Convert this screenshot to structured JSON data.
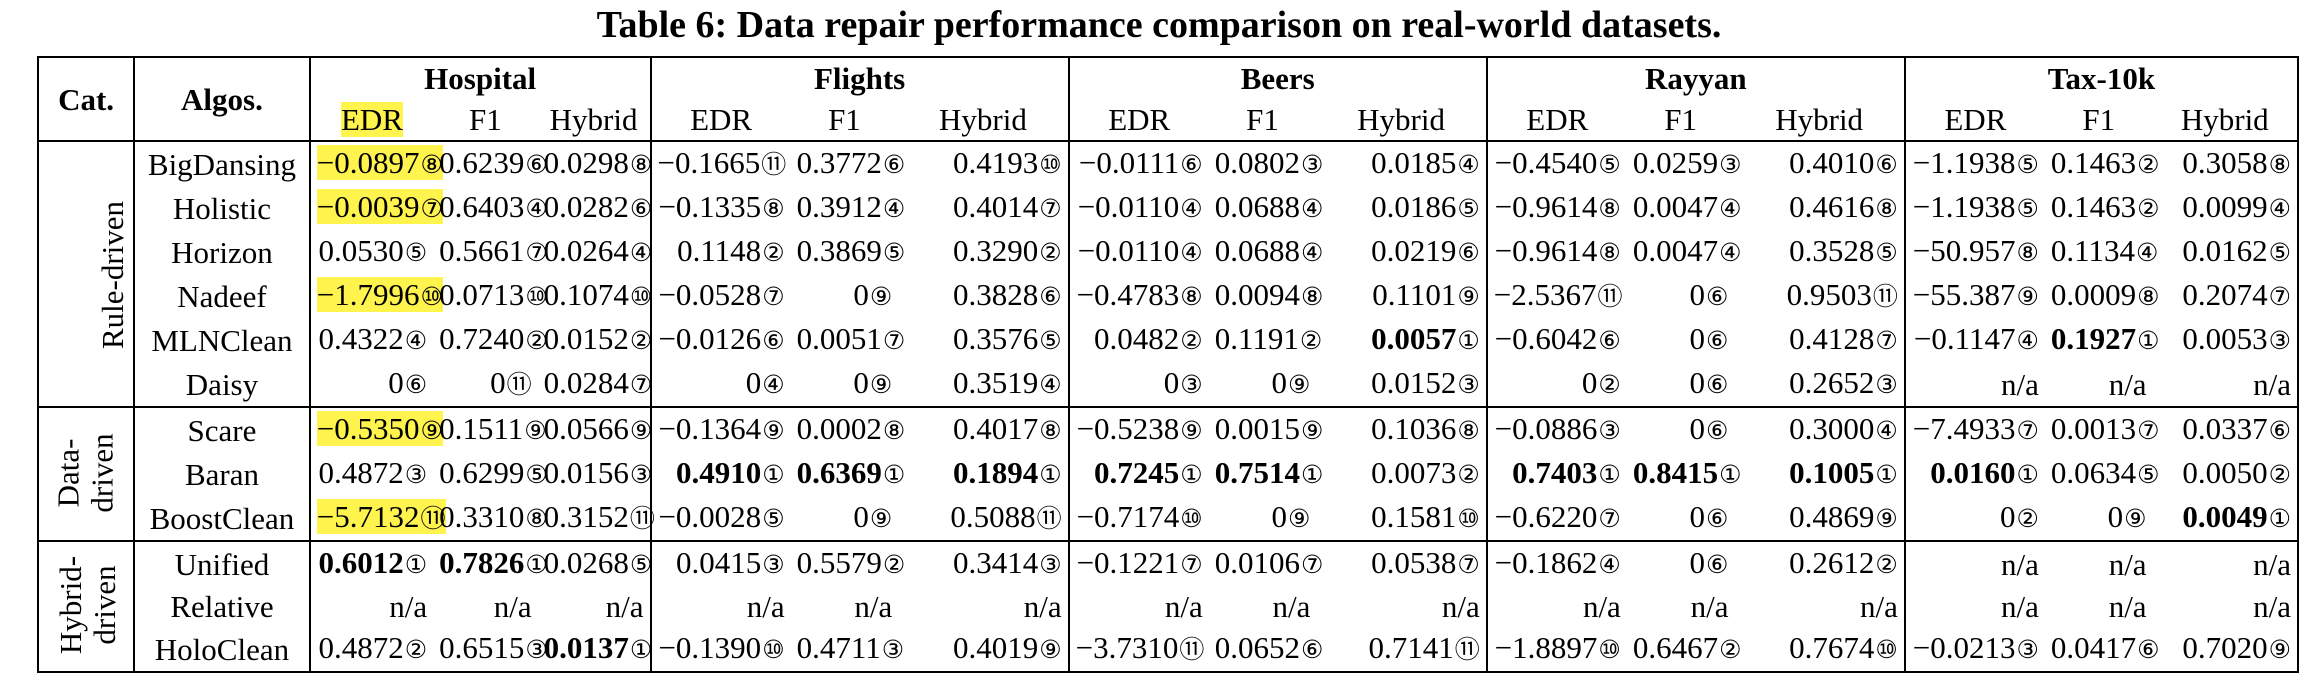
{
  "caption": "Table 6: Data repair performance comparison on real-world datasets.",
  "header": {
    "cat": "Cat.",
    "algos": "Algos.",
    "datasets": [
      "Hospital",
      "Flights",
      "Beers",
      "Rayyan",
      "Tax-10k"
    ],
    "metrics": [
      "EDR",
      "F1",
      "Hybrid"
    ]
  },
  "groups": [
    {
      "label": "Rule-driven",
      "lines": [
        "Rule-driven"
      ],
      "rows": [
        {
          "algo": "BigDansing",
          "cells": [
            {
              "v": "−0.0897",
              "r": "⑧",
              "hl": true
            },
            {
              "v": "0.6239",
              "r": "⑥"
            },
            {
              "v": "0.0298",
              "r": "⑧"
            },
            {
              "v": "−0.1665",
              "r": "⑪"
            },
            {
              "v": "0.3772",
              "r": "⑥"
            },
            {
              "v": "0.4193",
              "r": "⑩"
            },
            {
              "v": "−0.0111",
              "r": "⑥"
            },
            {
              "v": "0.0802",
              "r": "③"
            },
            {
              "v": "0.0185",
              "r": "④"
            },
            {
              "v": "−0.4540",
              "r": "⑤"
            },
            {
              "v": "0.0259",
              "r": "③"
            },
            {
              "v": "0.4010",
              "r": "⑥"
            },
            {
              "v": "−1.1938",
              "r": "⑤"
            },
            {
              "v": "0.1463",
              "r": "②"
            },
            {
              "v": "0.3058",
              "r": "⑧"
            }
          ]
        },
        {
          "algo": "Holistic",
          "cells": [
            {
              "v": "−0.0039",
              "r": "⑦",
              "hl": true
            },
            {
              "v": "0.6403",
              "r": "④"
            },
            {
              "v": "0.0282",
              "r": "⑥"
            },
            {
              "v": "−0.1335",
              "r": "⑧"
            },
            {
              "v": "0.3912",
              "r": "④"
            },
            {
              "v": "0.4014",
              "r": "⑦"
            },
            {
              "v": "−0.0110",
              "r": "④"
            },
            {
              "v": "0.0688",
              "r": "④"
            },
            {
              "v": "0.0186",
              "r": "⑤"
            },
            {
              "v": "−0.9614",
              "r": "⑧"
            },
            {
              "v": "0.0047",
              "r": "④"
            },
            {
              "v": "0.4616",
              "r": "⑧"
            },
            {
              "v": "−1.1938",
              "r": "⑤"
            },
            {
              "v": "0.1463",
              "r": "②"
            },
            {
              "v": "0.0099",
              "r": "④"
            }
          ]
        },
        {
          "algo": "Horizon",
          "cells": [
            {
              "v": "0.0530",
              "r": "⑤"
            },
            {
              "v": "0.5661",
              "r": "⑦"
            },
            {
              "v": "0.0264",
              "r": "④"
            },
            {
              "v": "0.1148",
              "r": "②"
            },
            {
              "v": "0.3869",
              "r": "⑤"
            },
            {
              "v": "0.3290",
              "r": "②"
            },
            {
              "v": "−0.0110",
              "r": "④"
            },
            {
              "v": "0.0688",
              "r": "④"
            },
            {
              "v": "0.0219",
              "r": "⑥"
            },
            {
              "v": "−0.9614",
              "r": "⑧"
            },
            {
              "v": "0.0047",
              "r": "④"
            },
            {
              "v": "0.3528",
              "r": "⑤"
            },
            {
              "v": "−50.957",
              "r": "⑧"
            },
            {
              "v": "0.1134",
              "r": "④"
            },
            {
              "v": "0.0162",
              "r": "⑤"
            }
          ]
        },
        {
          "algo": "Nadeef",
          "cells": [
            {
              "v": "−1.7996",
              "r": "⑩",
              "hl": true
            },
            {
              "v": "0.0713",
              "r": "⑩"
            },
            {
              "v": "0.1074",
              "r": "⑩"
            },
            {
              "v": "−0.0528",
              "r": "⑦"
            },
            {
              "v": "0",
              "r": "⑨"
            },
            {
              "v": "0.3828",
              "r": "⑥"
            },
            {
              "v": "−0.4783",
              "r": "⑧"
            },
            {
              "v": "0.0094",
              "r": "⑧"
            },
            {
              "v": "0.1101",
              "r": "⑨"
            },
            {
              "v": "−2.5367",
              "r": "⑪"
            },
            {
              "v": "0",
              "r": "⑥"
            },
            {
              "v": "0.9503",
              "r": "⑪"
            },
            {
              "v": "−55.387",
              "r": "⑨"
            },
            {
              "v": "0.0009",
              "r": "⑧"
            },
            {
              "v": "0.2074",
              "r": "⑦"
            }
          ]
        },
        {
          "algo": "MLNClean",
          "cells": [
            {
              "v": "0.4322",
              "r": "④"
            },
            {
              "v": "0.7240",
              "r": "②"
            },
            {
              "v": "0.0152",
              "r": "②"
            },
            {
              "v": "−0.0126",
              "r": "⑥"
            },
            {
              "v": "0.0051",
              "r": "⑦"
            },
            {
              "v": "0.3576",
              "r": "⑤"
            },
            {
              "v": "0.0482",
              "r": "②"
            },
            {
              "v": "0.1191",
              "r": "②"
            },
            {
              "v": "0.0057",
              "r": "①",
              "b": true
            },
            {
              "v": "−0.6042",
              "r": "⑥"
            },
            {
              "v": "0",
              "r": "⑥"
            },
            {
              "v": "0.4128",
              "r": "⑦"
            },
            {
              "v": "−0.1147",
              "r": "④"
            },
            {
              "v": "0.1927",
              "r": "①",
              "b": true
            },
            {
              "v": "0.0053",
              "r": "③"
            }
          ]
        },
        {
          "algo": "Daisy",
          "cells": [
            {
              "v": "0",
              "r": "⑥"
            },
            {
              "v": "0",
              "r": "⑪"
            },
            {
              "v": "0.0284",
              "r": "⑦"
            },
            {
              "v": "0",
              "r": "④"
            },
            {
              "v": "0",
              "r": "⑨"
            },
            {
              "v": "0.3519",
              "r": "④"
            },
            {
              "v": "0",
              "r": "③"
            },
            {
              "v": "0",
              "r": "⑨"
            },
            {
              "v": "0.0152",
              "r": "③"
            },
            {
              "v": "0",
              "r": "②"
            },
            {
              "v": "0",
              "r": "⑥"
            },
            {
              "v": "0.2652",
              "r": "③"
            },
            {
              "v": "n/a",
              "r": ""
            },
            {
              "v": "n/a",
              "r": ""
            },
            {
              "v": "n/a",
              "r": ""
            }
          ]
        }
      ]
    },
    {
      "label": "Data-driven",
      "lines": [
        "Data-",
        "driven"
      ],
      "rows": [
        {
          "algo": "Scare",
          "cells": [
            {
              "v": "−0.5350",
              "r": "⑨",
              "hl": true
            },
            {
              "v": "0.1511",
              "r": "⑨"
            },
            {
              "v": "0.0566",
              "r": "⑨"
            },
            {
              "v": "−0.1364",
              "r": "⑨"
            },
            {
              "v": "0.0002",
              "r": "⑧"
            },
            {
              "v": "0.4017",
              "r": "⑧"
            },
            {
              "v": "−0.5238",
              "r": "⑨"
            },
            {
              "v": "0.0015",
              "r": "⑨"
            },
            {
              "v": "0.1036",
              "r": "⑧"
            },
            {
              "v": "−0.0886",
              "r": "③"
            },
            {
              "v": "0",
              "r": "⑥"
            },
            {
              "v": "0.3000",
              "r": "④"
            },
            {
              "v": "−7.4933",
              "r": "⑦"
            },
            {
              "v": "0.0013",
              "r": "⑦"
            },
            {
              "v": "0.0337",
              "r": "⑥"
            }
          ]
        },
        {
          "algo": "Baran",
          "cells": [
            {
              "v": "0.4872",
              "r": "③"
            },
            {
              "v": "0.6299",
              "r": "⑤"
            },
            {
              "v": "0.0156",
              "r": "③"
            },
            {
              "v": "0.4910",
              "r": "①",
              "b": true
            },
            {
              "v": "0.6369",
              "r": "①",
              "b": true
            },
            {
              "v": "0.1894",
              "r": "①",
              "b": true
            },
            {
              "v": "0.7245",
              "r": "①",
              "b": true
            },
            {
              "v": "0.7514",
              "r": "①",
              "b": true
            },
            {
              "v": "0.0073",
              "r": "②"
            },
            {
              "v": "0.7403",
              "r": "①",
              "b": true
            },
            {
              "v": "0.8415",
              "r": "①",
              "b": true
            },
            {
              "v": "0.1005",
              "r": "①",
              "b": true
            },
            {
              "v": "0.0160",
              "r": "①",
              "b": true
            },
            {
              "v": "0.0634",
              "r": "⑤"
            },
            {
              "v": "0.0050",
              "r": "②"
            }
          ]
        },
        {
          "algo": "BoostClean",
          "cells": [
            {
              "v": "−5.7132",
              "r": "⑪",
              "hl": true
            },
            {
              "v": "0.3310",
              "r": "⑧"
            },
            {
              "v": "0.3152",
              "r": "⑪"
            },
            {
              "v": "−0.0028",
              "r": "⑤"
            },
            {
              "v": "0",
              "r": "⑨"
            },
            {
              "v": "0.5088",
              "r": "⑪"
            },
            {
              "v": "−0.7174",
              "r": "⑩"
            },
            {
              "v": "0",
              "r": "⑨"
            },
            {
              "v": "0.1581",
              "r": "⑩"
            },
            {
              "v": "−0.6220",
              "r": "⑦"
            },
            {
              "v": "0",
              "r": "⑥"
            },
            {
              "v": "0.4869",
              "r": "⑨"
            },
            {
              "v": "0",
              "r": "②"
            },
            {
              "v": "0",
              "r": "⑨"
            },
            {
              "v": "0.0049",
              "r": "①",
              "b": true
            }
          ]
        }
      ]
    },
    {
      "label": "Hybrid-driven",
      "lines": [
        "Hybrid-",
        "driven"
      ],
      "rows": [
        {
          "algo": "Unified",
          "cells": [
            {
              "v": "0.6012",
              "r": "①",
              "b": true
            },
            {
              "v": "0.7826",
              "r": "①",
              "b": true
            },
            {
              "v": "0.0268",
              "r": "⑤"
            },
            {
              "v": "0.0415",
              "r": "③"
            },
            {
              "v": "0.5579",
              "r": "②"
            },
            {
              "v": "0.3414",
              "r": "③"
            },
            {
              "v": "−0.1221",
              "r": "⑦"
            },
            {
              "v": "0.0106",
              "r": "⑦"
            },
            {
              "v": "0.0538",
              "r": "⑦"
            },
            {
              "v": "−0.1862",
              "r": "④"
            },
            {
              "v": "0",
              "r": "⑥"
            },
            {
              "v": "0.2612",
              "r": "②"
            },
            {
              "v": "n/a",
              "r": ""
            },
            {
              "v": "n/a",
              "r": ""
            },
            {
              "v": "n/a",
              "r": ""
            }
          ]
        },
        {
          "algo": "Relative",
          "cells": [
            {
              "v": "n/a",
              "r": ""
            },
            {
              "v": "n/a",
              "r": ""
            },
            {
              "v": "n/a",
              "r": ""
            },
            {
              "v": "n/a",
              "r": ""
            },
            {
              "v": "n/a",
              "r": ""
            },
            {
              "v": "n/a",
              "r": ""
            },
            {
              "v": "n/a",
              "r": ""
            },
            {
              "v": "n/a",
              "r": ""
            },
            {
              "v": "n/a",
              "r": ""
            },
            {
              "v": "n/a",
              "r": ""
            },
            {
              "v": "n/a",
              "r": ""
            },
            {
              "v": "n/a",
              "r": ""
            },
            {
              "v": "n/a",
              "r": ""
            },
            {
              "v": "n/a",
              "r": ""
            },
            {
              "v": "n/a",
              "r": ""
            }
          ]
        },
        {
          "algo": "HoloClean",
          "cells": [
            {
              "v": "0.4872",
              "r": "②"
            },
            {
              "v": "0.6515",
              "r": "③"
            },
            {
              "v": "0.0137",
              "r": "①",
              "b": true
            },
            {
              "v": "−0.1390",
              "r": "⑩"
            },
            {
              "v": "0.4711",
              "r": "③"
            },
            {
              "v": "0.4019",
              "r": "⑨"
            },
            {
              "v": "−3.7310",
              "r": "⑪"
            },
            {
              "v": "0.0652",
              "r": "⑥"
            },
            {
              "v": "0.7141",
              "r": "⑪"
            },
            {
              "v": "−1.8897",
              "r": "⑩"
            },
            {
              "v": "0.6467",
              "r": "②"
            },
            {
              "v": "0.7674",
              "r": "⑩"
            },
            {
              "v": "−0.0213",
              "r": "③"
            },
            {
              "v": "0.0417",
              "r": "⑥"
            },
            {
              "v": "0.7020",
              "r": "⑨"
            }
          ]
        }
      ]
    }
  ],
  "colors": {
    "highlight": "#fff34d"
  }
}
